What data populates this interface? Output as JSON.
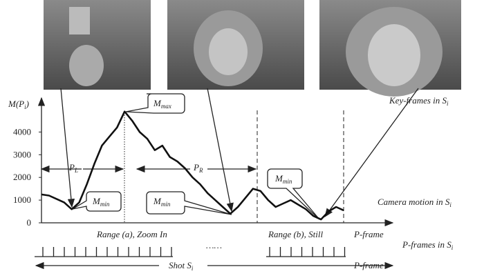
{
  "chart_data": {
    "type": "line",
    "ylabel": {
      "text": "M(P",
      "sub": "i",
      "tail": ")"
    },
    "ylim": [
      0,
      5500
    ],
    "yticks": [
      0,
      1000,
      2000,
      3000,
      4000
    ],
    "grid": false,
    "color": "#111111",
    "values": [
      1250,
      1200,
      1050,
      900,
      600,
      900,
      1700,
      2600,
      3400,
      3800,
      4200,
      4900,
      4500,
      4000,
      3700,
      3200,
      3400,
      2900,
      2700,
      2400,
      2000,
      1700,
      1300,
      1000,
      700,
      400,
      700,
      1100,
      1500,
      1400,
      1000,
      700,
      850,
      1000,
      800,
      600,
      300,
      150,
      500,
      700,
      550
    ]
  },
  "labels": {
    "key_frames": {
      "text": "Key-frames in S",
      "sub": "i"
    },
    "camera_motion": {
      "text": "Camera motion in S",
      "sub": "i"
    },
    "p_frames": {
      "text": "P-frames in S",
      "sub": "i"
    },
    "pl": {
      "text": "P",
      "sub": "L"
    },
    "pr": {
      "text": "P",
      "sub": "R"
    },
    "mmax": {
      "text": "M",
      "sub": "max"
    },
    "mmin_1": {
      "text": "M",
      "sub": "min"
    },
    "mmin_2": {
      "text": "M",
      "sub": "min"
    },
    "mmin_3": {
      "text": "M",
      "sub": "min"
    },
    "range_a": "Range (a), Zoom In",
    "range_b": "Range (b), Still",
    "p_frame_1": "P-frame",
    "p_frame_2": "P-frame",
    "ellipsis": "……",
    "shot": {
      "text": "Shot S",
      "sub": "i"
    }
  }
}
